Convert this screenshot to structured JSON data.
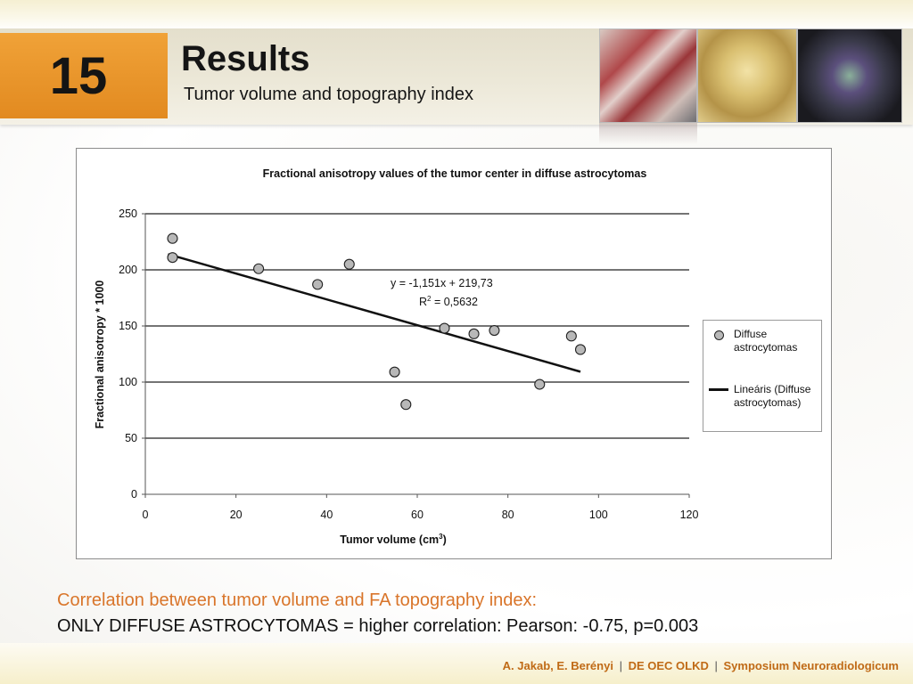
{
  "slide": {
    "number": "15",
    "title": "Results",
    "subtitle": "Tumor volume and topography index"
  },
  "chart_data": {
    "type": "scatter",
    "title": "Fractional anisotropy values of the tumor center in diffuse astrocytomas",
    "xlabel": "Tumor volume (cm",
    "xlabel_sup": "3",
    "xlabel_end": ")",
    "ylabel": "Fractional anisotropy * 1000",
    "xlim": [
      0,
      120
    ],
    "ylim": [
      0,
      250
    ],
    "xticks": [
      0,
      20,
      40,
      60,
      80,
      100,
      120
    ],
    "yticks": [
      0,
      50,
      100,
      150,
      200,
      250
    ],
    "grid": "horizontal",
    "legend_position": "right",
    "series": [
      {
        "name": "Diffuse astrocytomas",
        "points": [
          [
            6,
            228
          ],
          [
            6,
            211
          ],
          [
            25,
            201
          ],
          [
            38,
            187
          ],
          [
            45,
            205
          ],
          [
            55,
            109
          ],
          [
            57.5,
            80
          ],
          [
            66,
            148
          ],
          [
            72.5,
            143
          ],
          [
            77,
            146
          ],
          [
            87,
            98
          ],
          [
            94,
            141
          ],
          [
            96,
            129
          ]
        ]
      }
    ],
    "trendline": {
      "name": "Lineáris (Diffuse astrocytomas)",
      "slope": -1.151,
      "intercept": 219.73,
      "x_range": [
        5,
        96
      ]
    },
    "annotations": {
      "equation": "y = -1,151x + 219,73",
      "r2_prefix": "R",
      "r2_sup": "2",
      "r2_value": " = 0,5632"
    },
    "legend_labels": {
      "points": "Diffuse astrocytomas",
      "line": "Lineáris (Diffuse astrocytomas)"
    }
  },
  "caption": {
    "line1": "Correlation between tumor volume and FA topography index:",
    "line2": "ONLY DIFFUSE ASTROCYTOMAS = higher correlation: Pearson: -0.75, p=0.003"
  },
  "footer": {
    "authors": "A. Jakab, E. Berényi",
    "org": "DE OEC OLKD",
    "event": "Symposium Neuroradiologicum",
    "separator": "|"
  },
  "colors": {
    "accent_orange": "#e28a20",
    "caption_orange": "#d9752a",
    "footer_orange": "#c06a16",
    "marker_fill": "#b8b8b8"
  }
}
